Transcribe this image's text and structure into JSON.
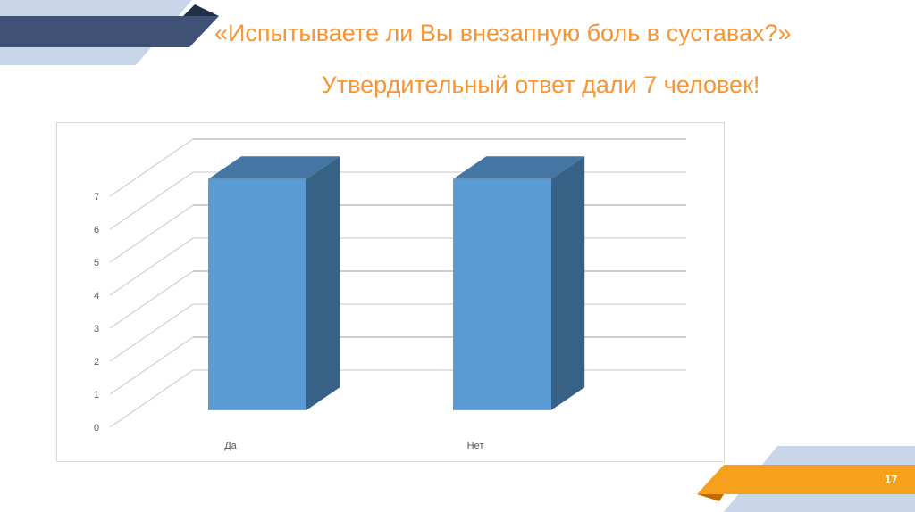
{
  "slide": {
    "title": "«Испытываете ли Вы внезапную боль в суставах?»",
    "subtitle": "Утвердительный ответ дали 7 человек!",
    "page_number": "17"
  },
  "colors": {
    "accent": "#f79433",
    "navy": "#3f5175",
    "light_blue": "#c9d5e8",
    "bar_front": "#5b9bd5",
    "bar_side": "#376286",
    "bar_top": "#4576a3"
  },
  "chart_data": {
    "type": "bar",
    "style": "3d-column",
    "categories": [
      "Да",
      "Нет"
    ],
    "values": [
      7,
      7
    ],
    "yticks": [
      "0",
      "1",
      "2",
      "3",
      "4",
      "5",
      "6",
      "7"
    ],
    "ylim": [
      0,
      7
    ],
    "grid": true,
    "title": "",
    "xlabel": "",
    "ylabel": ""
  }
}
